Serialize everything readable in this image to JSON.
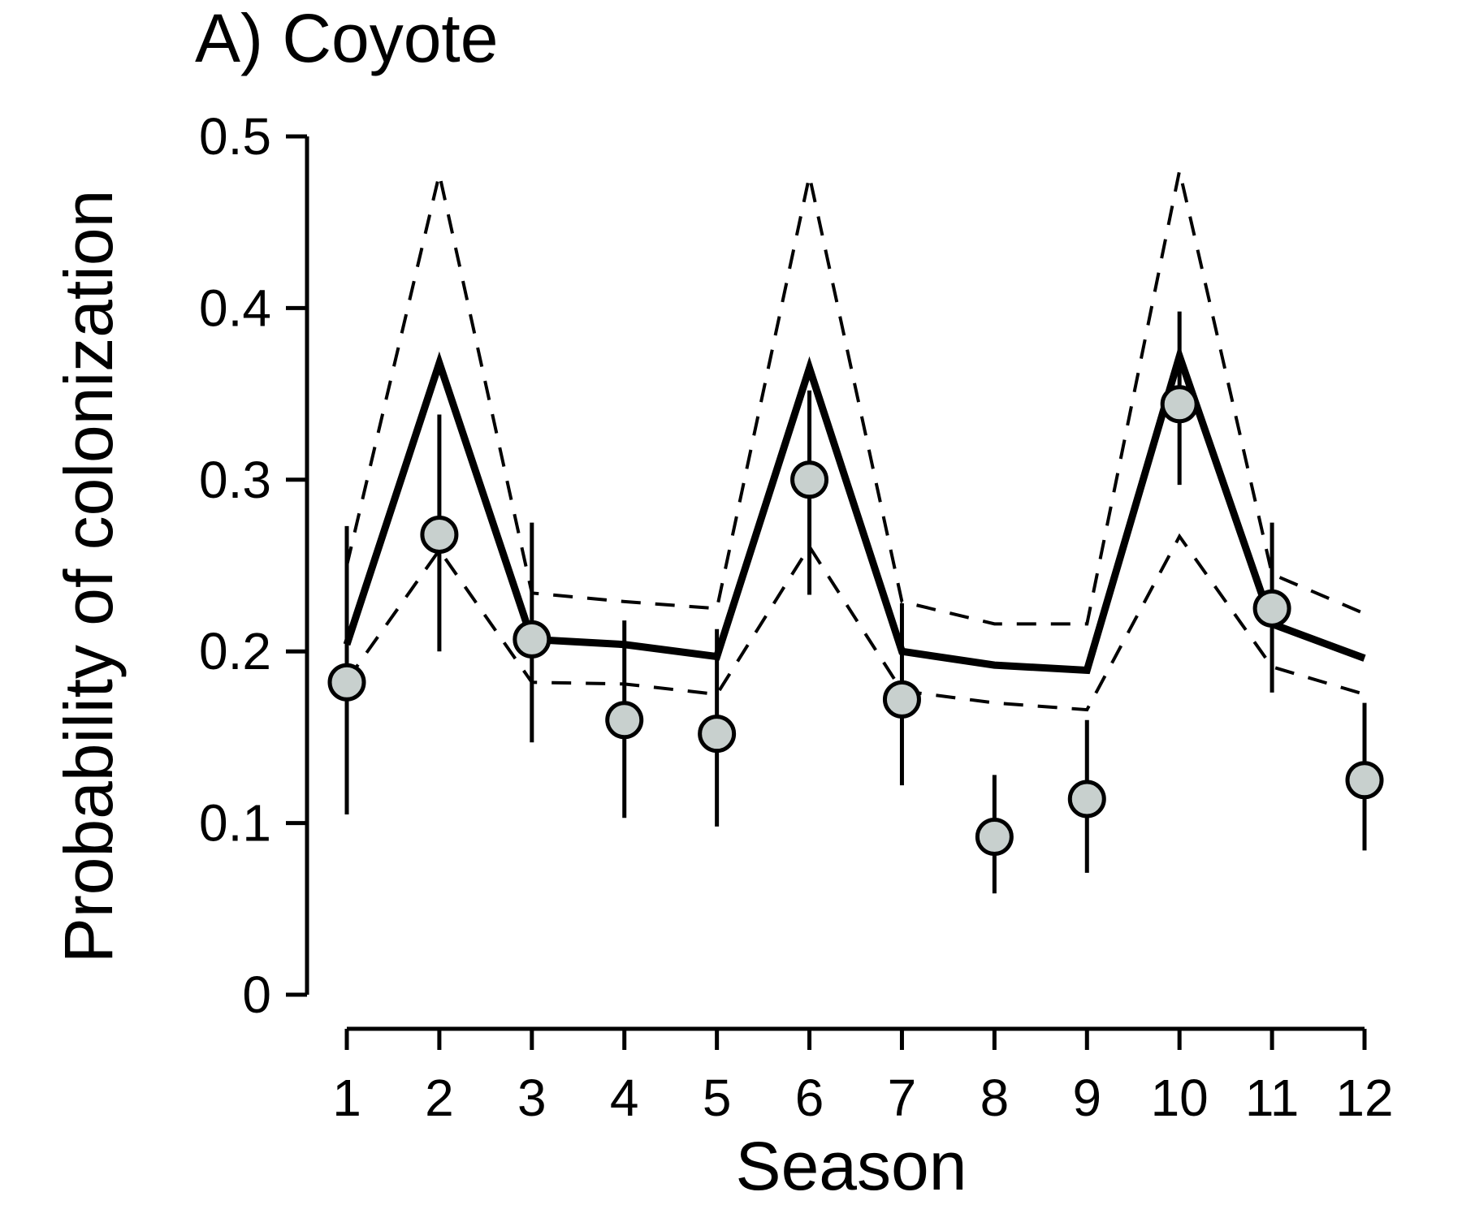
{
  "chart_data": {
    "type": "line",
    "title": "A) Coyote",
    "xlabel": "Season",
    "ylabel": "Probability of colonization",
    "x": [
      1,
      2,
      3,
      4,
      5,
      6,
      7,
      8,
      9,
      10,
      11,
      12
    ],
    "x_tick_labels": [
      "1",
      "2",
      "3",
      "4",
      "5",
      "6",
      "7",
      "8",
      "9",
      "10",
      "11",
      "12"
    ],
    "xlim": [
      1,
      12
    ],
    "ylim": [
      0,
      0.5
    ],
    "y_ticks": [
      0,
      0.1,
      0.2,
      0.3,
      0.4,
      0.5
    ],
    "y_tick_labels": [
      "0",
      "0.1",
      "0.2",
      "0.3",
      "0.4",
      "0.5"
    ],
    "grid": false,
    "series": [
      {
        "style": "solid-line",
        "color": "#000000",
        "values": [
          0.204,
          0.368,
          0.207,
          0.204,
          0.197,
          0.365,
          0.2,
          0.192,
          0.189,
          0.372,
          0.216,
          0.196
        ]
      },
      {
        "style": "dashed-line",
        "color": "#000000",
        "values": [
          0.25,
          0.478,
          0.234,
          0.229,
          0.225,
          0.477,
          0.229,
          0.216,
          0.216,
          0.48,
          0.245,
          0.222
        ]
      },
      {
        "style": "dashed-line",
        "color": "#000000",
        "values": [
          0.183,
          0.259,
          0.182,
          0.181,
          0.175,
          0.261,
          0.177,
          0.17,
          0.166,
          0.267,
          0.191,
          0.175
        ]
      },
      {
        "style": "points-with-error-bars",
        "color": "#c8d0ce",
        "values": [
          0.182,
          0.268,
          0.207,
          0.16,
          0.152,
          0.3,
          0.172,
          0.092,
          0.114,
          0.344,
          0.225,
          0.125
        ],
        "lower": [
          0.105,
          0.2,
          0.147,
          0.103,
          0.098,
          0.233,
          0.122,
          0.059,
          0.071,
          0.297,
          0.176,
          0.084
        ],
        "upper": [
          0.273,
          0.338,
          0.275,
          0.218,
          0.213,
          0.352,
          0.228,
          0.128,
          0.16,
          0.398,
          0.275,
          0.17
        ]
      }
    ]
  }
}
